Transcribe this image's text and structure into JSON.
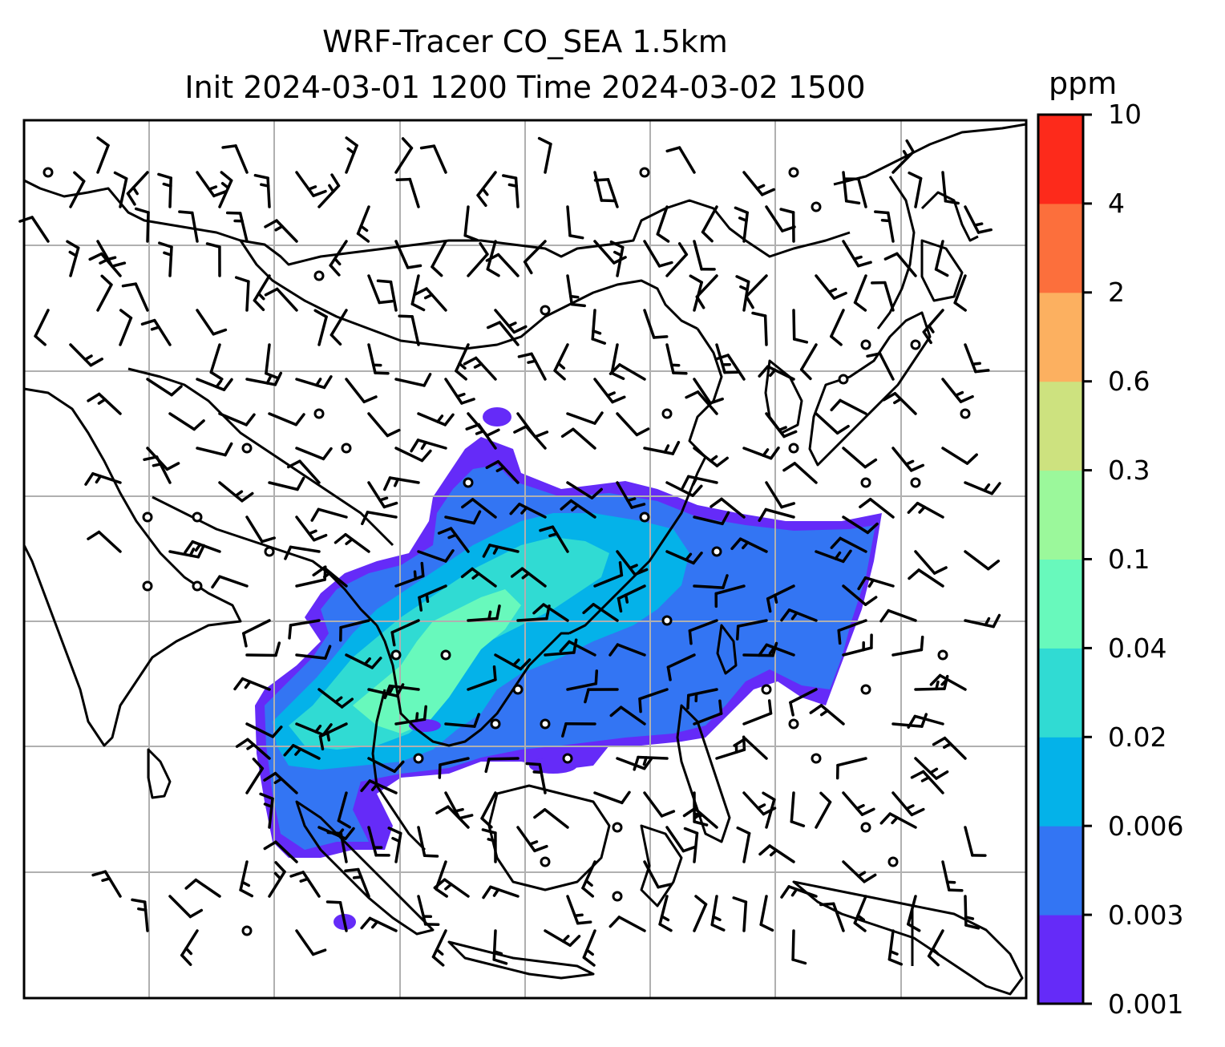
{
  "title": {
    "line1": "WRF-Tracer CO_SEA 1.5km",
    "line2": "Init 2024-03-01 1200 Time 2024-03-02 1500"
  },
  "colorbar": {
    "unit": "ppm",
    "levels": [
      "0.001",
      "0.003",
      "0.006",
      "0.02",
      "0.04",
      "0.1",
      "0.3",
      "0.6",
      "2",
      "4",
      "10"
    ],
    "colors": [
      "#652bf8",
      "#3375f3",
      "#04b2e9",
      "#30dbd3",
      "#68f9bc",
      "#9bf89b",
      "#cde27f",
      "#fcb060",
      "#fc6f3c",
      "#fd2a1b"
    ]
  },
  "map": {
    "gridlines": true,
    "coastlines": true,
    "wind_barbs": true,
    "plume_classes": [
      "0.001",
      "0.003",
      "0.006",
      "0.02",
      "0.04"
    ]
  }
}
